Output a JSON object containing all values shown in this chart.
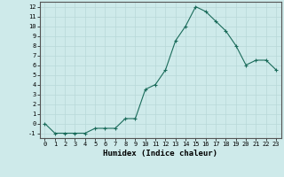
{
  "x": [
    0,
    1,
    2,
    3,
    4,
    5,
    6,
    7,
    8,
    9,
    10,
    11,
    12,
    13,
    14,
    15,
    16,
    17,
    18,
    19,
    20,
    21,
    22,
    23
  ],
  "y": [
    0,
    -1,
    -1,
    -1,
    -1,
    -0.5,
    -0.5,
    -0.5,
    0.5,
    0.5,
    3.5,
    4.0,
    5.5,
    8.5,
    10.0,
    12.0,
    11.5,
    10.5,
    9.5,
    8.0,
    6.0,
    6.5,
    6.5,
    5.5
  ],
  "line_color": "#1a6b5a",
  "marker_color": "#1a6b5a",
  "bg_color": "#ceeaea",
  "grid_color": "#b8d8d8",
  "xlabel": "Humidex (Indice chaleur)",
  "xlim": [
    -0.5,
    23.5
  ],
  "ylim": [
    -1.5,
    12.5
  ],
  "yticks": [
    -1,
    0,
    1,
    2,
    3,
    4,
    5,
    6,
    7,
    8,
    9,
    10,
    11,
    12
  ],
  "xticks": [
    0,
    1,
    2,
    3,
    4,
    5,
    6,
    7,
    8,
    9,
    10,
    11,
    12,
    13,
    14,
    15,
    16,
    17,
    18,
    19,
    20,
    21,
    22,
    23
  ]
}
